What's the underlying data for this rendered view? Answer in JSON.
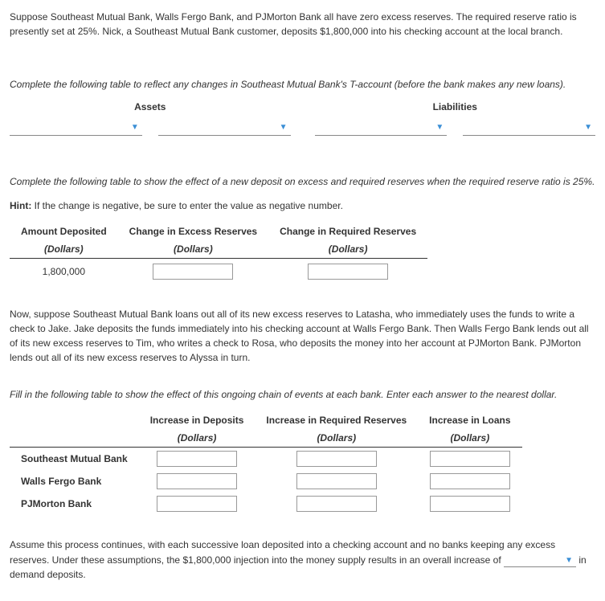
{
  "intro": "Suppose Southeast Mutual Bank, Walls Fergo Bank, and PJMorton Bank all have zero excess reserves. The required reserve ratio is presently set at 25%. Nick, a Southeast Mutual Bank customer, deposits $1,800,000 into his checking account at the local branch.",
  "t_account": {
    "prompt": "Complete the following table to reflect any changes in Southeast Mutual Bank's T-account (before the bank makes any new loans).",
    "assets_header": "Assets",
    "liabilities_header": "Liabilities"
  },
  "reserves": {
    "prompt": "Complete the following table to show the effect of a new deposit on excess and required reserves when the required reserve ratio is 25%.",
    "hint_label": "Hint:",
    "hint_text": " If the change is negative, be sure to enter the value as negative number.",
    "col1": "Amount Deposited",
    "col2": "Change in Excess Reserves",
    "col3": "Change in Required Reserves",
    "unit": "(Dollars)",
    "amount": "1,800,000"
  },
  "chain": {
    "para": "Now, suppose Southeast Mutual Bank loans out all of its new excess reserves to Latasha, who immediately uses the funds to write a check to Jake. Jake deposits the funds immediately into his checking account at Walls Fergo Bank. Then Walls Fergo Bank lends out all of its new excess reserves to Tim, who writes a check to Rosa, who deposits the money into her account at PJMorton Bank. PJMorton lends out all of its new excess reserves to Alyssa in turn.",
    "prompt": "Fill in the following table to show the effect of this ongoing chain of events at each bank. Enter each answer to the nearest dollar.",
    "col1": "Increase in Deposits",
    "col2": "Increase in Required Reserves",
    "col3": "Increase in Loans",
    "unit": "(Dollars)",
    "row1": "Southeast Mutual Bank",
    "row2": "Walls Fergo Bank",
    "row3": "PJMorton Bank"
  },
  "final": {
    "text1": "Assume this process continues, with each successive loan deposited into a checking account and no banks keeping any excess reserves. Under these assumptions, the $1,800,000 injection into the money supply results in an overall increase of ",
    "text2": " in demand deposits."
  }
}
